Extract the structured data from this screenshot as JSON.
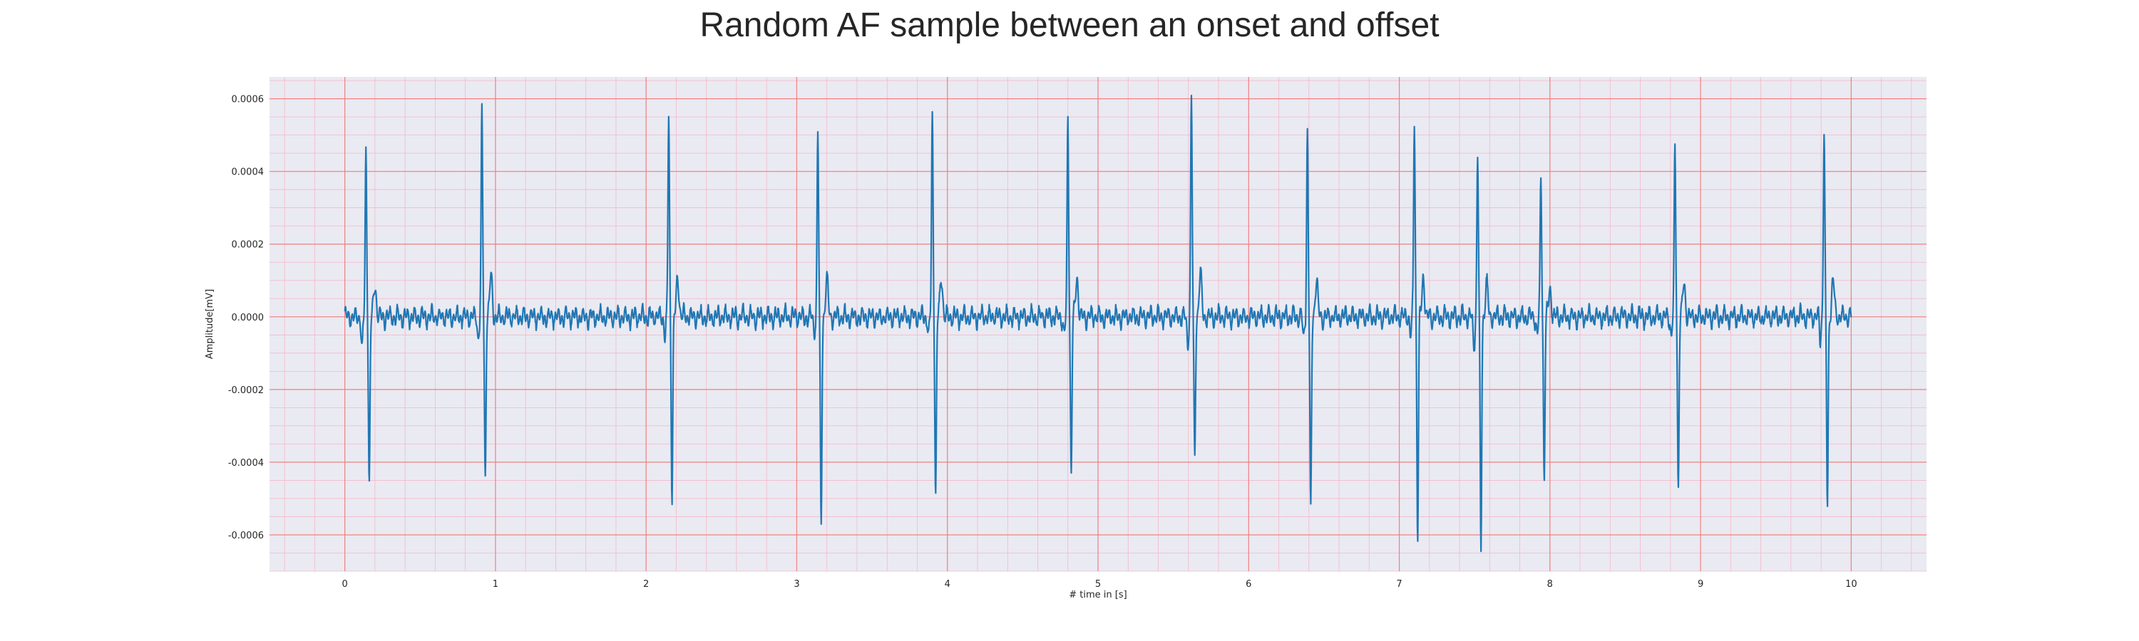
{
  "chart_data": {
    "type": "line",
    "title": "Random AF sample between an onset and offset",
    "xlabel": "# time in [s]",
    "ylabel": "Amplitude[mV]",
    "xlim": [
      -0.5,
      10.5
    ],
    "ylim": [
      -0.0007,
      0.00066
    ],
    "xticks": [
      0,
      1,
      2,
      3,
      4,
      5,
      6,
      7,
      8,
      9,
      10
    ],
    "xtick_labels": [
      "0",
      "1",
      "2",
      "3",
      "4",
      "5",
      "6",
      "7",
      "8",
      "9",
      "10"
    ],
    "yticks": [
      -0.0006,
      -0.0004,
      -0.0002,
      0.0,
      0.0002,
      0.0004,
      0.0006
    ],
    "ytick_labels": [
      "-0.0006",
      "-0.0004",
      "-0.0002",
      "0.0000",
      "0.0002",
      "0.0004",
      "0.0006"
    ],
    "grid": true,
    "series": [
      {
        "color": "#1f77b4",
        "beats": [
          {
            "t": 0.14,
            "r": 0.00045,
            "s": -0.00046,
            "q": -9e-05
          },
          {
            "t": 0.91,
            "r": 0.00056,
            "s": -0.00044,
            "q": -6e-05
          },
          {
            "t": 2.15,
            "r": 0.000555,
            "s": -0.00049,
            "q": -5e-05
          },
          {
            "t": 3.14,
            "r": 0.00051,
            "s": -0.00057,
            "q": -4e-05
          },
          {
            "t": 3.9,
            "r": 0.00055,
            "s": -0.000495,
            "q": -5e-05
          },
          {
            "t": 4.8,
            "r": 0.00055,
            "s": -0.00043,
            "q": -5e-05
          },
          {
            "t": 5.62,
            "r": 0.0006,
            "s": -0.00039,
            "q": -7e-05
          },
          {
            "t": 6.39,
            "r": 0.00051,
            "s": -0.00054,
            "q": -6e-05
          },
          {
            "t": 7.1,
            "r": 0.00054,
            "s": -0.0006,
            "q": -5e-05
          },
          {
            "t": 7.52,
            "r": 0.000445,
            "s": -0.00064,
            "q": -8e-05
          },
          {
            "t": 7.94,
            "r": 0.00039,
            "s": -0.00044,
            "q": -5e-05
          },
          {
            "t": 8.83,
            "r": 0.000465,
            "s": -0.00047,
            "q": -5e-05
          },
          {
            "t": 9.82,
            "r": 0.000505,
            "s": -0.00052,
            "q": -6e-05
          }
        ],
        "t_start": 0.0,
        "t_end": 10.0,
        "baseline_noise": 3e-05,
        "sample_step": 0.01
      }
    ]
  },
  "colors": {
    "plot_background": "#eaeaf2",
    "major_grid": "#f08080",
    "minor_grid": "#f4b8c8",
    "line": "#1f77b4"
  }
}
